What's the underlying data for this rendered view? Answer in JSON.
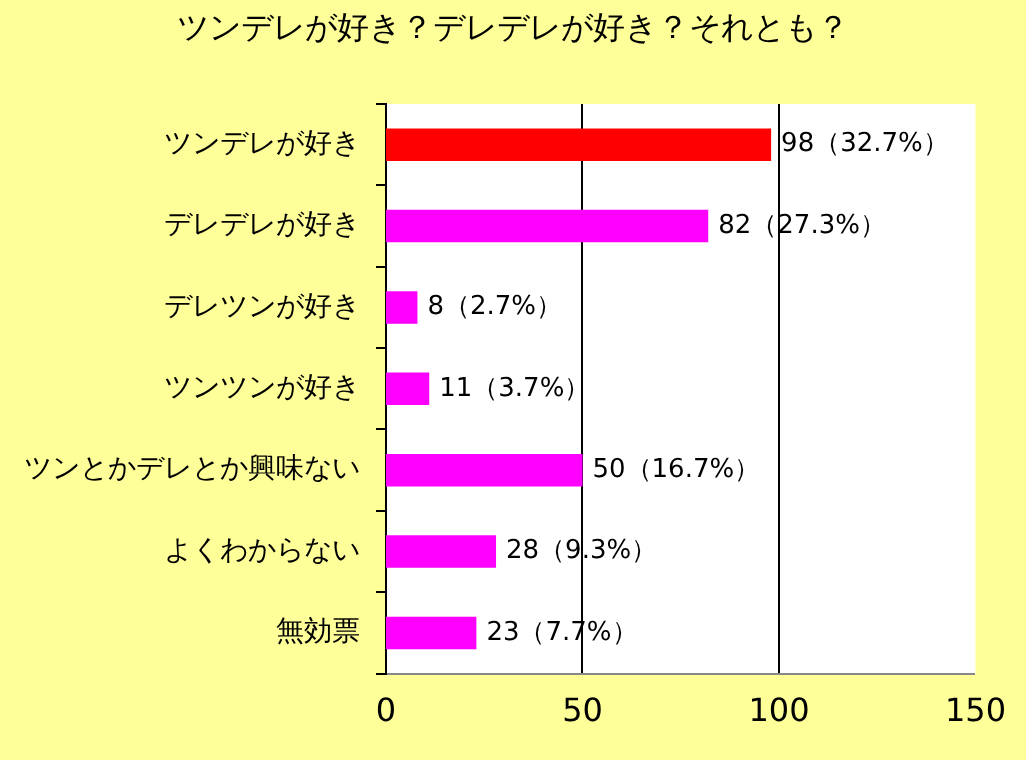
{
  "chart_data": {
    "type": "bar",
    "orientation": "horizontal",
    "title": "ツンデレが好き？デレデレが好き？それとも？",
    "categories": [
      "ツンデレが好き",
      "デレデレが好き",
      "デレツンが好き",
      "ツンツンが好き",
      "ツンとかデレとか興味ない",
      "よくわからない",
      "無効票"
    ],
    "values": [
      98,
      82,
      8,
      11,
      50,
      28,
      23
    ],
    "colors": [
      "#ff0000",
      "#ff00ff",
      "#ff00ff",
      "#ff00ff",
      "#ff00ff",
      "#ff00ff",
      "#ff00ff"
    ],
    "value_labels": [
      "98（32.7%）",
      "82（27.3%）",
      "8（2.7%）",
      "11（3.7%）",
      "50（16.7%）",
      "28（9.3%）",
      "23（7.7%）"
    ],
    "xlim": [
      0,
      150
    ],
    "xticks": [
      0,
      50,
      100,
      150
    ],
    "grid": "x",
    "legend": false
  }
}
